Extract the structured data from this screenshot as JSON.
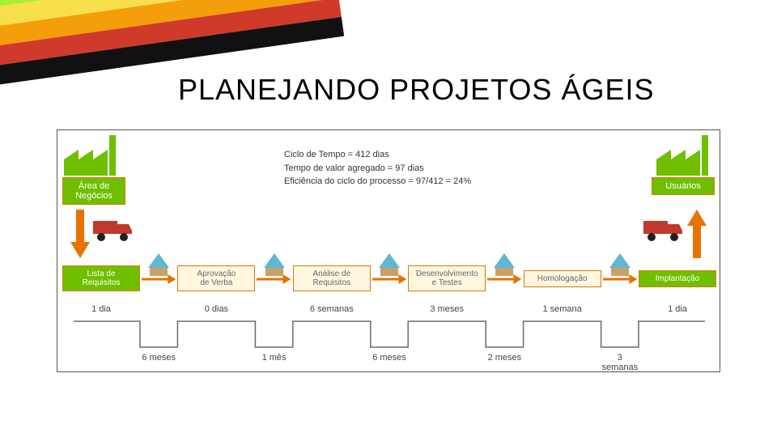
{
  "title": "PLANEJANDO PROJETOS ÁGEIS",
  "ribbons": [
    "#a8f030",
    "#f7e04b",
    "#f59e0b",
    "#d03a2a",
    "#111111"
  ],
  "metrics": {
    "line1": "Ciclo de Tempo = 412 dias",
    "line2": "Tempo de valor agregado = 97 dias",
    "line3": "Eficiência do ciclo do processo = 97/412 = 24%"
  },
  "left_block": {
    "label": "Área de\nNegócios",
    "bg": "#6fbf00",
    "border": "#d97a00",
    "text": "#ffffff"
  },
  "right_block": {
    "label": "Usuários",
    "bg": "#6fbf00",
    "border": "#d97a00",
    "text": "#ffffff"
  },
  "factory_color": "#6fbf00",
  "truck_color": "#c0392b",
  "pile": {
    "top": "#5fb7d4",
    "base": "#c9a06a"
  },
  "arrow_color": "#e67300",
  "proc_arrow": "#e67300",
  "process": [
    {
      "label": "Lista de\nRequisitos",
      "bg": "#6fbf00",
      "text": "#ffffff",
      "border": "#d97a00",
      "top_dur": "1 dia",
      "gap_dur": "6 meses"
    },
    {
      "label": "Aprovação\nde Verba",
      "bg": "#fff7e0",
      "text": "#666",
      "border": "#d97a00",
      "top_dur": "0 dias",
      "gap_dur": "1 mês"
    },
    {
      "label": "Análise de\nRequisitos",
      "bg": "#fff7e0",
      "text": "#666",
      "border": "#d97a00",
      "top_dur": "6 semanas",
      "gap_dur": "6 meses"
    },
    {
      "label": "Desenvolvimento\ne Testes",
      "bg": "#fff7e0",
      "text": "#666",
      "border": "#d97a00",
      "top_dur": "3 meses",
      "gap_dur": "2 meses"
    },
    {
      "label": "Homologação",
      "bg": "#fff7e0",
      "text": "#666",
      "border": "#d97a00",
      "top_dur": "1 semana",
      "gap_dur": "3 semanas"
    },
    {
      "label": "Implantação",
      "bg": "#6fbf00",
      "text": "#ffffff",
      "border": "#d97a00",
      "top_dur": "1 dia",
      "gap_dur": ""
    }
  ],
  "wave_color": "#6a6a6a",
  "diagram_border": "#555555"
}
